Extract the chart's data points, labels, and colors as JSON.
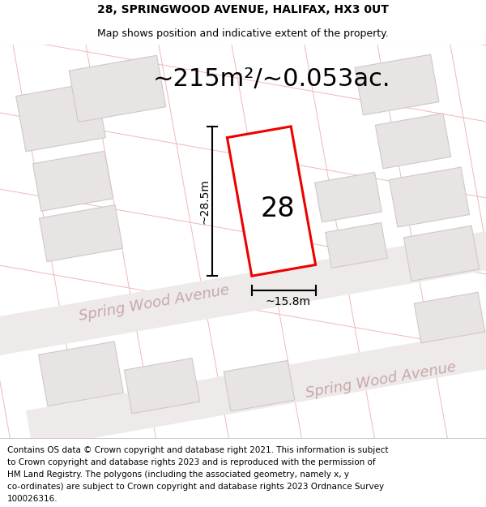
{
  "title_line1": "28, SPRINGWOOD AVENUE, HALIFAX, HX3 0UT",
  "title_line2": "Map shows position and indicative extent of the property.",
  "area_text": "~215m²/~0.053ac.",
  "number_label": "28",
  "dim_height": "~28.5m",
  "dim_width": "~15.8m",
  "street_label1": "Spring Wood Avenue",
  "street_label2": "Spring Wood Avenue",
  "footer_text": "Contains OS data © Crown copyright and database right 2021. This information is subject to Crown copyright and database rights 2023 and is reproduced with the permission of HM Land Registry. The polygons (including the associated geometry, namely x, y co-ordinates) are subject to Crown copyright and database rights 2023 Ordnance Survey 100026316.",
  "map_bg": "#f9f6f6",
  "cadastral_color": "#f0b8b8",
  "building_fill": "#e8e4e4",
  "building_stroke": "#d0c8c8",
  "property_fill": "#ffffff",
  "property_stroke": "#ee0000",
  "dim_line_color": "#000000",
  "street_text_color": "#c8a8a8",
  "title_fontsize": 10,
  "subtitle_fontsize": 9,
  "area_fontsize": 22,
  "number_fontsize": 24,
  "dim_fontsize": 10,
  "street_fontsize": 13,
  "footer_fontsize": 7.5
}
